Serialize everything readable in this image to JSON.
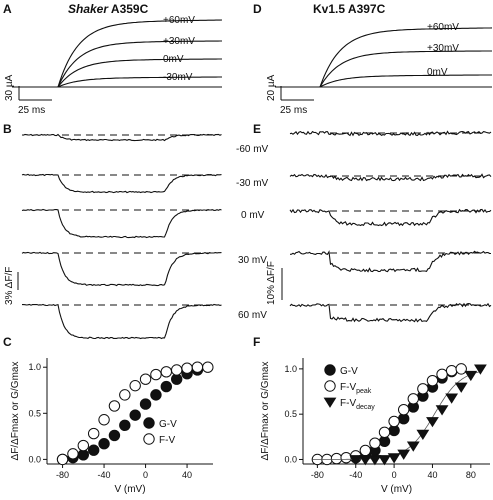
{
  "panels": {
    "A": {
      "letter": "A",
      "title_italic": "Shaker",
      "title_rest": " A359C",
      "voltages": [
        "+60mV",
        "+30mV",
        "0mV",
        "-30mV"
      ],
      "scale_y": "30 µA",
      "scale_x": "25 ms"
    },
    "D": {
      "letter": "D",
      "title": "Kv1.5 A397C",
      "voltages": [
        "+60mV",
        "+30mV",
        "0mV"
      ],
      "scale_y": "20 µA",
      "scale_x": "25 ms"
    },
    "B": {
      "letter": "B",
      "scale": "3% ΔF/F"
    },
    "E": {
      "letter": "E",
      "scale": "10% ΔF/F"
    },
    "mid_voltages": [
      "-60 mV",
      "-30 mV",
      "0 mV",
      "30 mV",
      "60 mV"
    ],
    "C": {
      "letter": "C"
    },
    "F": {
      "letter": "F"
    }
  },
  "chart_data": [
    {
      "panel": "C",
      "type": "scatter",
      "xlabel": "V (mV)",
      "ylabel": "ΔF/ΔFmax or G/Gmax",
      "xticks": [
        -80,
        -40,
        0,
        40
      ],
      "yticks": [
        0.0,
        0.5,
        1.0
      ],
      "xlim": [
        -95,
        65
      ],
      "ylim": [
        -0.05,
        1.1
      ],
      "legend_position": "center-right",
      "series": [
        {
          "name": "G-V",
          "marker": "filled-circle",
          "x": [
            -80,
            -70,
            -60,
            -50,
            -40,
            -30,
            -20,
            -10,
            0,
            10,
            20,
            30,
            40,
            50
          ],
          "y": [
            0.0,
            0.02,
            0.05,
            0.1,
            0.17,
            0.26,
            0.37,
            0.48,
            0.6,
            0.7,
            0.79,
            0.87,
            0.93,
            0.97
          ]
        },
        {
          "name": "F-V",
          "marker": "open-circle",
          "x": [
            -80,
            -70,
            -60,
            -50,
            -40,
            -30,
            -20,
            -10,
            0,
            10,
            20,
            30,
            40,
            50,
            60
          ],
          "y": [
            0.0,
            0.06,
            0.15,
            0.28,
            0.43,
            0.58,
            0.7,
            0.8,
            0.87,
            0.92,
            0.95,
            0.97,
            0.99,
            1.0,
            1.0
          ]
        }
      ]
    },
    {
      "panel": "F",
      "type": "scatter",
      "xlabel": "V (mV)",
      "ylabel": "ΔF/ΔFmax or G/Gmax",
      "xticks": [
        -80,
        -40,
        0,
        40,
        80
      ],
      "yticks": [
        0.0,
        0.5,
        1.0
      ],
      "xlim": [
        -95,
        100
      ],
      "ylim": [
        -0.05,
        1.12
      ],
      "legend_position": "top-left",
      "series": [
        {
          "name": "G-V",
          "marker": "filled-circle",
          "x": [
            -40,
            -30,
            -20,
            -10,
            0,
            10,
            20,
            30,
            40,
            50,
            60
          ],
          "y": [
            0.02,
            0.05,
            0.1,
            0.2,
            0.32,
            0.45,
            0.58,
            0.7,
            0.8,
            0.9,
            0.97
          ]
        },
        {
          "name": "F-V",
          "sub": "peak",
          "marker": "open-circle",
          "x": [
            -80,
            -70,
            -60,
            -50,
            -40,
            -30,
            -20,
            -10,
            0,
            10,
            20,
            30,
            40,
            50,
            60,
            70
          ],
          "y": [
            0.0,
            0.0,
            0.01,
            0.02,
            0.04,
            0.1,
            0.18,
            0.3,
            0.42,
            0.55,
            0.67,
            0.78,
            0.87,
            0.94,
            0.98,
            1.0
          ]
        },
        {
          "name": "F-V",
          "sub": "decay",
          "marker": "filled-triangle-down",
          "x": [
            -40,
            -30,
            -20,
            -10,
            0,
            10,
            20,
            30,
            40,
            50,
            60,
            70,
            80,
            90
          ],
          "y": [
            0.0,
            0.0,
            0.0,
            0.0,
            0.02,
            0.06,
            0.15,
            0.28,
            0.42,
            0.55,
            0.68,
            0.8,
            0.93,
            1.0
          ]
        }
      ]
    }
  ]
}
